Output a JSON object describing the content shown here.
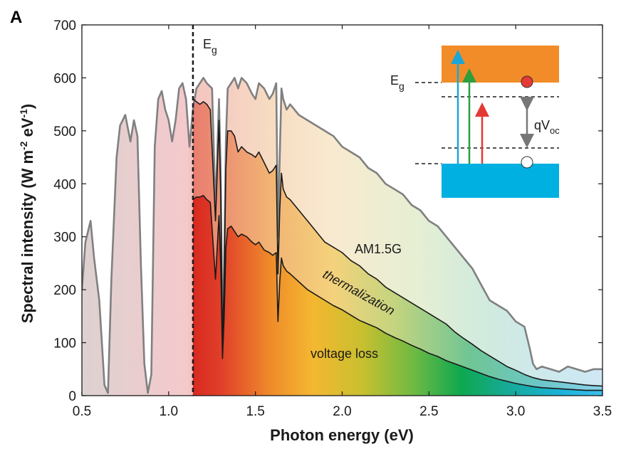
{
  "panel_label": "A",
  "chart_data": {
    "type": "area",
    "xlabel": "Photon energy (eV)",
    "ylabel": "Spectral intensity (W m",
    "ylabel_sup1": "-2",
    "ylabel_mid": " eV",
    "ylabel_sup2": "-1",
    "ylabel_end": ")",
    "xlim": [
      0.5,
      3.5
    ],
    "ylim": [
      0,
      700
    ],
    "xticks": [
      0.5,
      1.0,
      1.5,
      2.0,
      2.5,
      3.0,
      3.5
    ],
    "xtick_labels": [
      "0.5",
      "1.0",
      "1.5",
      "2.0",
      "2.5",
      "3.0",
      "3.5"
    ],
    "yticks": [
      0,
      100,
      200,
      300,
      400,
      500,
      600,
      700
    ],
    "ytick_labels": [
      "0",
      "100",
      "200",
      "300",
      "400",
      "500",
      "600",
      "700"
    ],
    "bandgap_eV": 1.14,
    "bandgap_label": "E",
    "bandgap_label_sub": "g",
    "colors": {
      "am15_line": "#808080",
      "inner_line": "#1a1a1a",
      "band_orange": "#f28c28",
      "band_blue": "#00b0e0",
      "arrow_blue": "#1ba6d6",
      "arrow_green": "#2e9e3e",
      "arrow_red": "#e53935",
      "electron": "#e53935"
    },
    "series": [
      {
        "name": "AM1.5G",
        "x": [
          0.5,
          0.52,
          0.55,
          0.57,
          0.6,
          0.63,
          0.65,
          0.67,
          0.7,
          0.72,
          0.75,
          0.78,
          0.8,
          0.82,
          0.84,
          0.86,
          0.88,
          0.9,
          0.92,
          0.94,
          0.96,
          0.98,
          1.0,
          1.02,
          1.04,
          1.06,
          1.08,
          1.1,
          1.12,
          1.14,
          1.16,
          1.18,
          1.2,
          1.22,
          1.25,
          1.27,
          1.29,
          1.3,
          1.31,
          1.32,
          1.33,
          1.34,
          1.36,
          1.38,
          1.4,
          1.42,
          1.45,
          1.48,
          1.5,
          1.52,
          1.55,
          1.58,
          1.6,
          1.62,
          1.63,
          1.64,
          1.65,
          1.66,
          1.68,
          1.7,
          1.75,
          1.8,
          1.85,
          1.9,
          1.95,
          2.0,
          2.05,
          2.1,
          2.15,
          2.2,
          2.25,
          2.3,
          2.35,
          2.4,
          2.45,
          2.5,
          2.55,
          2.6,
          2.65,
          2.7,
          2.75,
          2.8,
          2.85,
          2.9,
          2.95,
          3.0,
          3.05,
          3.08,
          3.1,
          3.12,
          3.15,
          3.2,
          3.25,
          3.3,
          3.35,
          3.4,
          3.45,
          3.5
        ],
        "y": [
          200,
          290,
          330,
          260,
          180,
          20,
          5,
          220,
          450,
          510,
          530,
          480,
          520,
          490,
          250,
          60,
          5,
          40,
          470,
          560,
          575,
          540,
          520,
          480,
          520,
          580,
          590,
          560,
          470,
          540,
          580,
          590,
          600,
          590,
          580,
          350,
          560,
          420,
          120,
          250,
          480,
          580,
          590,
          600,
          580,
          600,
          590,
          570,
          560,
          590,
          580,
          560,
          570,
          590,
          300,
          450,
          580,
          560,
          540,
          550,
          530,
          520,
          510,
          500,
          490,
          470,
          460,
          450,
          430,
          420,
          400,
          390,
          380,
          360,
          350,
          330,
          320,
          300,
          280,
          260,
          240,
          210,
          180,
          170,
          160,
          140,
          130,
          90,
          60,
          50,
          55,
          50,
          45,
          55,
          50,
          45,
          50,
          50
        ]
      },
      {
        "name": "thermalization boundary",
        "x": [
          1.14,
          1.16,
          1.18,
          1.2,
          1.22,
          1.24,
          1.27,
          1.29,
          1.3,
          1.31,
          1.32,
          1.33,
          1.34,
          1.36,
          1.38,
          1.4,
          1.42,
          1.45,
          1.48,
          1.5,
          1.52,
          1.55,
          1.58,
          1.6,
          1.62,
          1.63,
          1.64,
          1.65,
          1.66,
          1.68,
          1.7,
          1.75,
          1.8,
          1.85,
          1.9,
          1.95,
          2.0,
          2.05,
          2.1,
          2.15,
          2.2,
          2.25,
          2.3,
          2.35,
          2.4,
          2.45,
          2.5,
          2.55,
          2.6,
          2.65,
          2.7,
          2.75,
          2.8,
          2.85,
          2.9,
          2.95,
          3.0,
          3.05,
          3.1,
          3.15,
          3.2,
          3.25,
          3.3,
          3.35,
          3.4,
          3.45,
          3.5
        ],
        "y": [
          560,
          555,
          550,
          555,
          550,
          540,
          330,
          520,
          380,
          100,
          220,
          430,
          500,
          500,
          490,
          460,
          470,
          460,
          455,
          450,
          460,
          440,
          420,
          425,
          435,
          230,
          350,
          420,
          390,
          375,
          370,
          350,
          330,
          310,
          290,
          280,
          270,
          255,
          245,
          230,
          220,
          205,
          195,
          185,
          175,
          165,
          155,
          145,
          135,
          120,
          108,
          97,
          85,
          75,
          65,
          55,
          48,
          40,
          34,
          30,
          28,
          26,
          24,
          22,
          20,
          19,
          18
        ]
      },
      {
        "name": "voltage loss boundary",
        "x": [
          1.14,
          1.16,
          1.18,
          1.2,
          1.22,
          1.24,
          1.27,
          1.29,
          1.3,
          1.31,
          1.32,
          1.33,
          1.34,
          1.36,
          1.38,
          1.4,
          1.42,
          1.45,
          1.48,
          1.5,
          1.52,
          1.55,
          1.58,
          1.6,
          1.62,
          1.63,
          1.64,
          1.65,
          1.66,
          1.68,
          1.7,
          1.75,
          1.8,
          1.85,
          1.9,
          1.95,
          2.0,
          2.05,
          2.1,
          2.15,
          2.2,
          2.25,
          2.3,
          2.35,
          2.4,
          2.45,
          2.5,
          2.55,
          2.6,
          2.65,
          2.7,
          2.75,
          2.8,
          2.85,
          2.9,
          2.95,
          3.0,
          3.05,
          3.1,
          3.15,
          3.2,
          3.25,
          3.3,
          3.35,
          3.4,
          3.45,
          3.5
        ],
        "y": [
          370,
          375,
          375,
          378,
          370,
          365,
          220,
          340,
          250,
          70,
          150,
          280,
          315,
          320,
          310,
          300,
          305,
          300,
          290,
          285,
          290,
          275,
          270,
          265,
          270,
          140,
          215,
          260,
          245,
          235,
          230,
          215,
          200,
          190,
          180,
          170,
          162,
          152,
          142,
          135,
          128,
          118,
          110,
          103,
          95,
          88,
          80,
          74,
          66,
          60,
          54,
          48,
          42,
          36,
          31,
          27,
          23,
          20,
          17,
          15,
          14,
          13,
          12,
          11,
          10,
          10,
          10
        ]
      }
    ],
    "annotations": {
      "am15g": "AM1.5G",
      "thermalization": "thermalization",
      "voltage_loss": "voltage loss"
    },
    "inset": {
      "eg_label": "E",
      "eg_label_sub": "g",
      "qvoc_label": "qV",
      "qvoc_label_sub": "oc"
    }
  }
}
